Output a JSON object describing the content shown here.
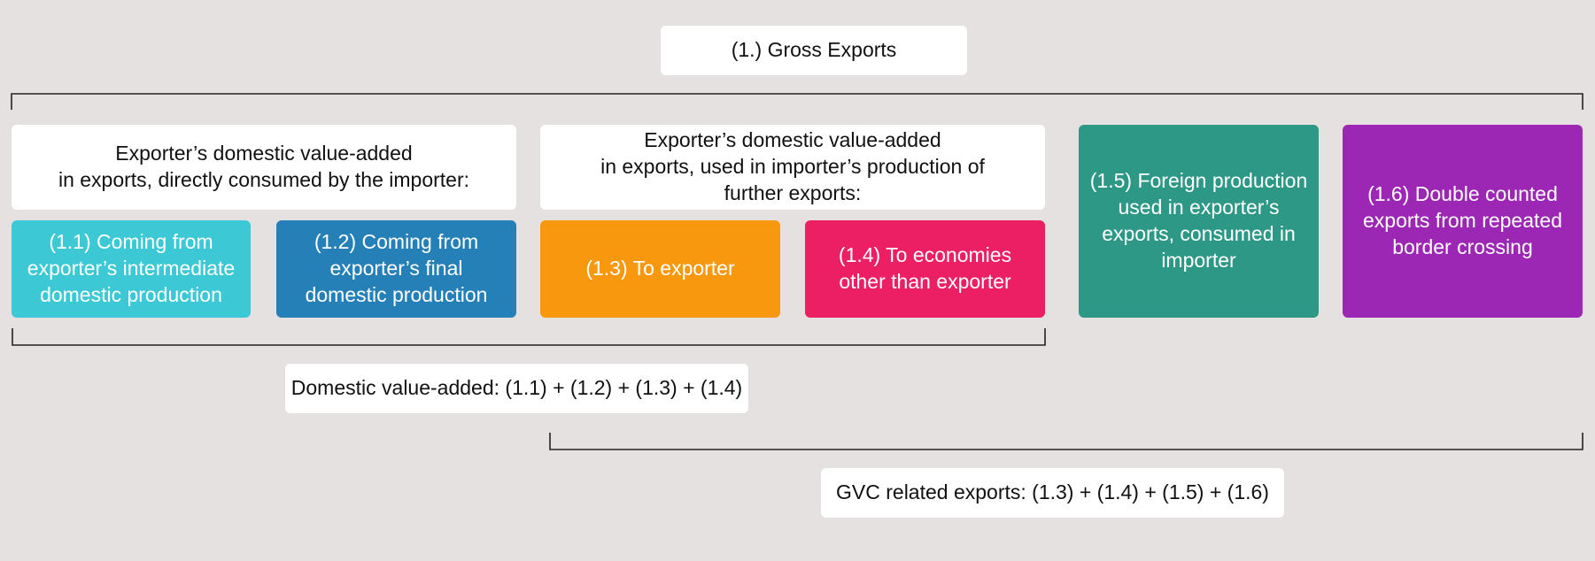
{
  "gross_exports": {
    "label": "(1.) Gross Exports"
  },
  "groups": {
    "direct": {
      "label": "Exporter’s domestic value-added\nin exports, directly consumed by the importer:"
    },
    "further": {
      "label": "Exporter’s domestic value-added\nin exports, used in importer’s production of\nfurther exports:"
    }
  },
  "components": [
    {
      "label": "(1.1) Coming from\nexporter’s intermediate\ndomestic production",
      "color": "#3cc8d4"
    },
    {
      "label": "(1.2) Coming from\nexporter’s final\ndomestic production",
      "color": "#2580b8"
    },
    {
      "label": "(1.3) To exporter",
      "color": "#f8980f"
    },
    {
      "label": "(1.4) To economies\nother than exporter",
      "color": "#ec1f65"
    },
    {
      "label": "(1.5) Foreign production\nused in exporter’s\nexports, consumed in\nimporter",
      "color": "#2e9886"
    },
    {
      "label": "(1.6) Double counted\nexports from repeated\nborder crossing",
      "color": "#9c27b5"
    }
  ],
  "totals": {
    "domestic_value_added": "Domestic value-added: (1.1) + (1.2) + (1.3) + (1.4)",
    "gvc_related_exports": "GVC related exports: (1.3) + (1.4) + (1.5) + (1.6)"
  }
}
